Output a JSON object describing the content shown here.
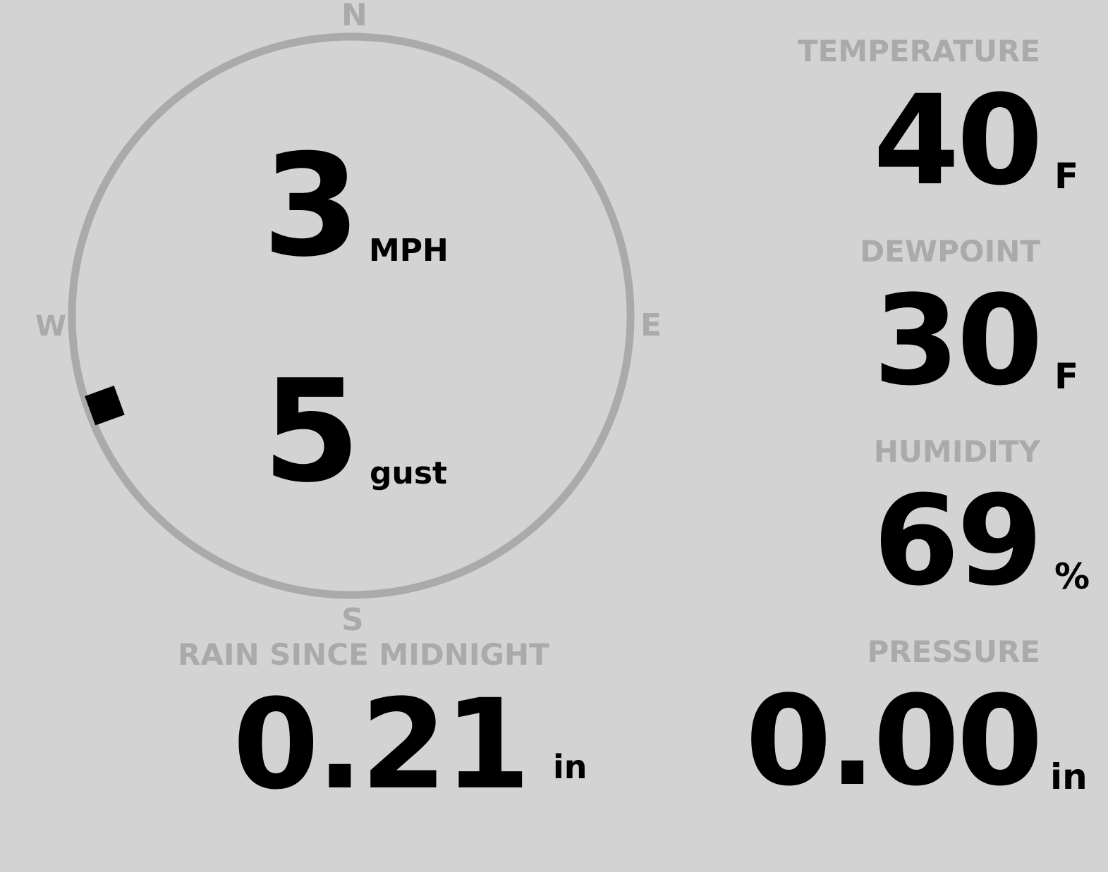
{
  "colors": {
    "background": "#d3d3d3",
    "muted": "#aaaaaa",
    "value": "#000000"
  },
  "wind": {
    "compass": {
      "n": "N",
      "e": "E",
      "s": "S",
      "w": "W"
    },
    "speed": "3",
    "speed_unit": "MPH",
    "gust": "5",
    "gust_unit": "gust",
    "direction_deg": 250
  },
  "rain": {
    "label": "RAIN SINCE MIDNIGHT",
    "value": "0.21",
    "unit": "in"
  },
  "temperature": {
    "label": "TEMPERATURE",
    "value": "40",
    "unit": "F"
  },
  "dewpoint": {
    "label": "DEWPOINT",
    "value": "30",
    "unit": "F"
  },
  "humidity": {
    "label": "HUMIDITY",
    "value": "69",
    "unit": "%"
  },
  "pressure": {
    "label": "PRESSURE",
    "value": "0.00",
    "unit": "in"
  }
}
